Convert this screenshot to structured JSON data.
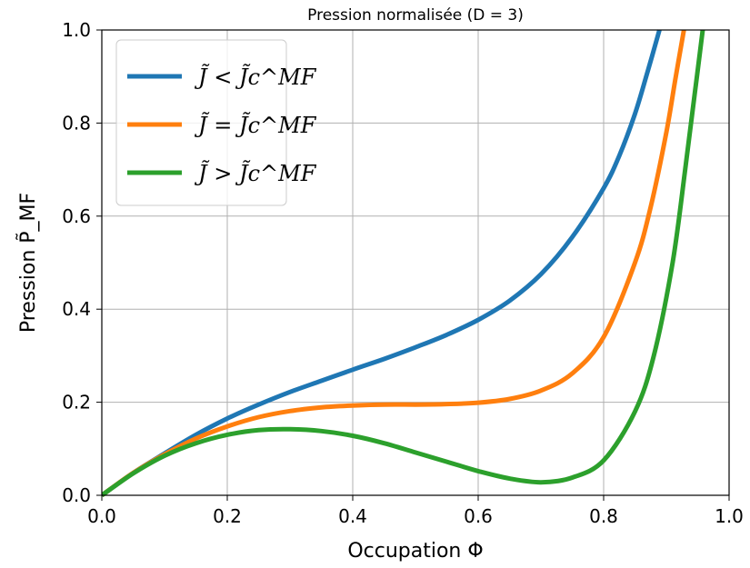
{
  "chart_data": {
    "type": "line",
    "title": "Pression normalisée (D = 3)",
    "xlabel": "Occupation Φ",
    "ylabel": "Pression P̃_MF",
    "xlim": [
      0.0,
      1.0
    ],
    "ylim": [
      0.0,
      1.0
    ],
    "xticks": [
      "0.0",
      "0.2",
      "0.4",
      "0.6",
      "0.8",
      "1.0"
    ],
    "yticks": [
      "0.0",
      "0.2",
      "0.4",
      "0.6",
      "0.8",
      "1.0"
    ],
    "grid": true,
    "legend_position": "top-left",
    "series": [
      {
        "name": "J̃ < J̃c^MF",
        "color": "#1f77b4",
        "x": [
          0.0,
          0.05,
          0.1,
          0.15,
          0.2,
          0.25,
          0.3,
          0.35,
          0.4,
          0.45,
          0.5,
          0.55,
          0.6,
          0.65,
          0.7,
          0.75,
          0.8,
          0.825,
          0.85,
          0.87,
          0.889
        ],
        "y": [
          0.0,
          0.048,
          0.09,
          0.13,
          0.165,
          0.195,
          0.222,
          0.246,
          0.27,
          0.293,
          0.318,
          0.345,
          0.377,
          0.418,
          0.475,
          0.555,
          0.66,
          0.73,
          0.82,
          0.91,
          1.0
        ]
      },
      {
        "name": "J̃ = J̃c^MF",
        "color": "#ff7f0e",
        "x": [
          0.0,
          0.05,
          0.1,
          0.15,
          0.2,
          0.25,
          0.3,
          0.35,
          0.4,
          0.45,
          0.5,
          0.55,
          0.6,
          0.65,
          0.7,
          0.75,
          0.8,
          0.85,
          0.875,
          0.9,
          0.915,
          0.928
        ],
        "y": [
          0.0,
          0.048,
          0.088,
          0.122,
          0.148,
          0.168,
          0.181,
          0.189,
          0.193,
          0.195,
          0.195,
          0.196,
          0.199,
          0.207,
          0.225,
          0.262,
          0.34,
          0.5,
          0.62,
          0.78,
          0.9,
          1.0
        ]
      },
      {
        "name": "J̃ > J̃c^MF",
        "color": "#2ca02c",
        "x": [
          0.0,
          0.05,
          0.1,
          0.15,
          0.2,
          0.25,
          0.3,
          0.35,
          0.4,
          0.45,
          0.5,
          0.55,
          0.6,
          0.65,
          0.7,
          0.75,
          0.8,
          0.85,
          0.88,
          0.91,
          0.93,
          0.945,
          0.958
        ],
        "y": [
          0.0,
          0.047,
          0.085,
          0.112,
          0.13,
          0.14,
          0.142,
          0.138,
          0.128,
          0.112,
          0.092,
          0.072,
          0.052,
          0.036,
          0.028,
          0.038,
          0.075,
          0.18,
          0.3,
          0.5,
          0.7,
          0.86,
          1.0
        ]
      }
    ]
  }
}
